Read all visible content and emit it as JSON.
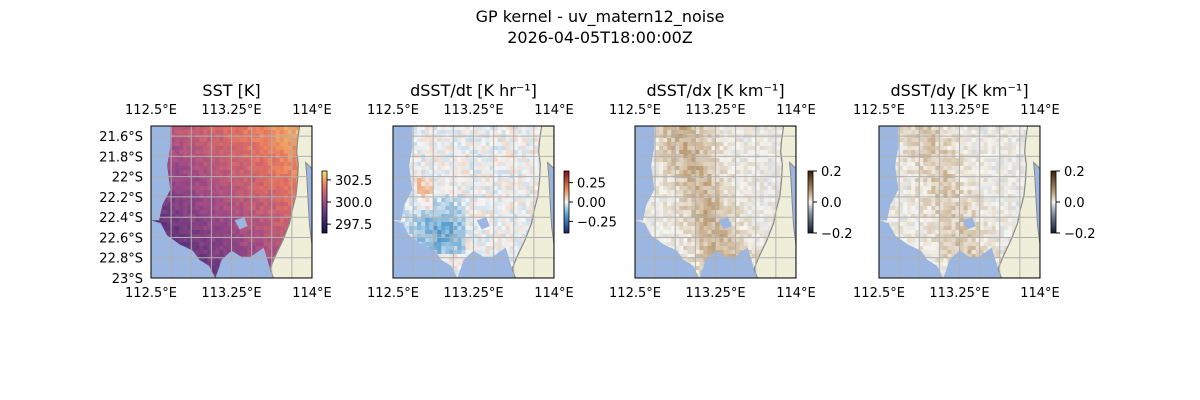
{
  "figure": {
    "title_line1": "GP kernel - uv_matern12_noise",
    "title_line2": "2026-04-05T18:00:00Z"
  },
  "colors": {
    "ocean": "#9bb6e0",
    "land": "#efefd9",
    "coast": "#888888",
    "grid": "#b0b0b0"
  },
  "chart_data": [
    {
      "type": "heatmap",
      "title": "SST [K]",
      "lon_range": [
        112.5,
        114.0
      ],
      "lat_range": [
        -23.0,
        -21.5
      ],
      "x_tick_labels_top": [
        "112.5°E",
        "113.25°E",
        "114°E"
      ],
      "x_tick_labels_bottom": [
        "112.5°E",
        "113.25°E",
        "114°E"
      ],
      "y_tick_labels": [
        "21.6°S",
        "21.8°S",
        "22°S",
        "22.2°S",
        "22.4°S",
        "22.6°S",
        "22.8°S",
        "23°S"
      ],
      "colorbar": {
        "range": [
          296.5,
          303.5
        ],
        "ticks": [
          302.5,
          300.0,
          297.5
        ],
        "tick_labels": [
          "302.5",
          "300.0",
          "297.5"
        ],
        "colormap": "thermal"
      }
    },
    {
      "type": "heatmap",
      "title": "dSST/dt [K hr⁻¹]",
      "lon_range": [
        112.5,
        114.0
      ],
      "lat_range": [
        -23.0,
        -21.5
      ],
      "x_tick_labels_top": [
        "112.5°E",
        "113.25°E",
        "114°E"
      ],
      "x_tick_labels_bottom": [
        "112.5°E",
        "113.25°E",
        "114°E"
      ],
      "colorbar": {
        "range": [
          -0.4,
          0.4
        ],
        "ticks": [
          0.25,
          0.0,
          -0.25
        ],
        "tick_labels": [
          "0.25",
          "0.00",
          "−0.25"
        ],
        "colormap": "diverging"
      }
    },
    {
      "type": "heatmap",
      "title": "dSST/dx [K km⁻¹]",
      "lon_range": [
        112.5,
        114.0
      ],
      "lat_range": [
        -23.0,
        -21.5
      ],
      "x_tick_labels_top": [
        "112.5°E",
        "113.25°E",
        "114°E"
      ],
      "x_tick_labels_bottom": [
        "112.5°E",
        "113.25°E",
        "114°E"
      ],
      "colorbar": {
        "range": [
          -0.2,
          0.2
        ],
        "ticks": [
          0.2,
          0.0,
          -0.2
        ],
        "tick_labels": [
          "0.2",
          "0.0",
          "−0.2"
        ],
        "colormap": "balance"
      }
    },
    {
      "type": "heatmap",
      "title": "dSST/dy [K km⁻¹]",
      "lon_range": [
        112.5,
        114.0
      ],
      "lat_range": [
        -23.0,
        -21.5
      ],
      "x_tick_labels_top": [
        "112.5°E",
        "113.25°E",
        "114°E"
      ],
      "x_tick_labels_bottom": [
        "112.5°E",
        "113.25°E",
        "114°E"
      ],
      "colorbar": {
        "range": [
          -0.2,
          0.2
        ],
        "ticks": [
          0.2,
          0.0,
          -0.2
        ],
        "tick_labels": [
          "0.2",
          "0.0",
          "−0.2"
        ],
        "colormap": "balance"
      }
    }
  ]
}
